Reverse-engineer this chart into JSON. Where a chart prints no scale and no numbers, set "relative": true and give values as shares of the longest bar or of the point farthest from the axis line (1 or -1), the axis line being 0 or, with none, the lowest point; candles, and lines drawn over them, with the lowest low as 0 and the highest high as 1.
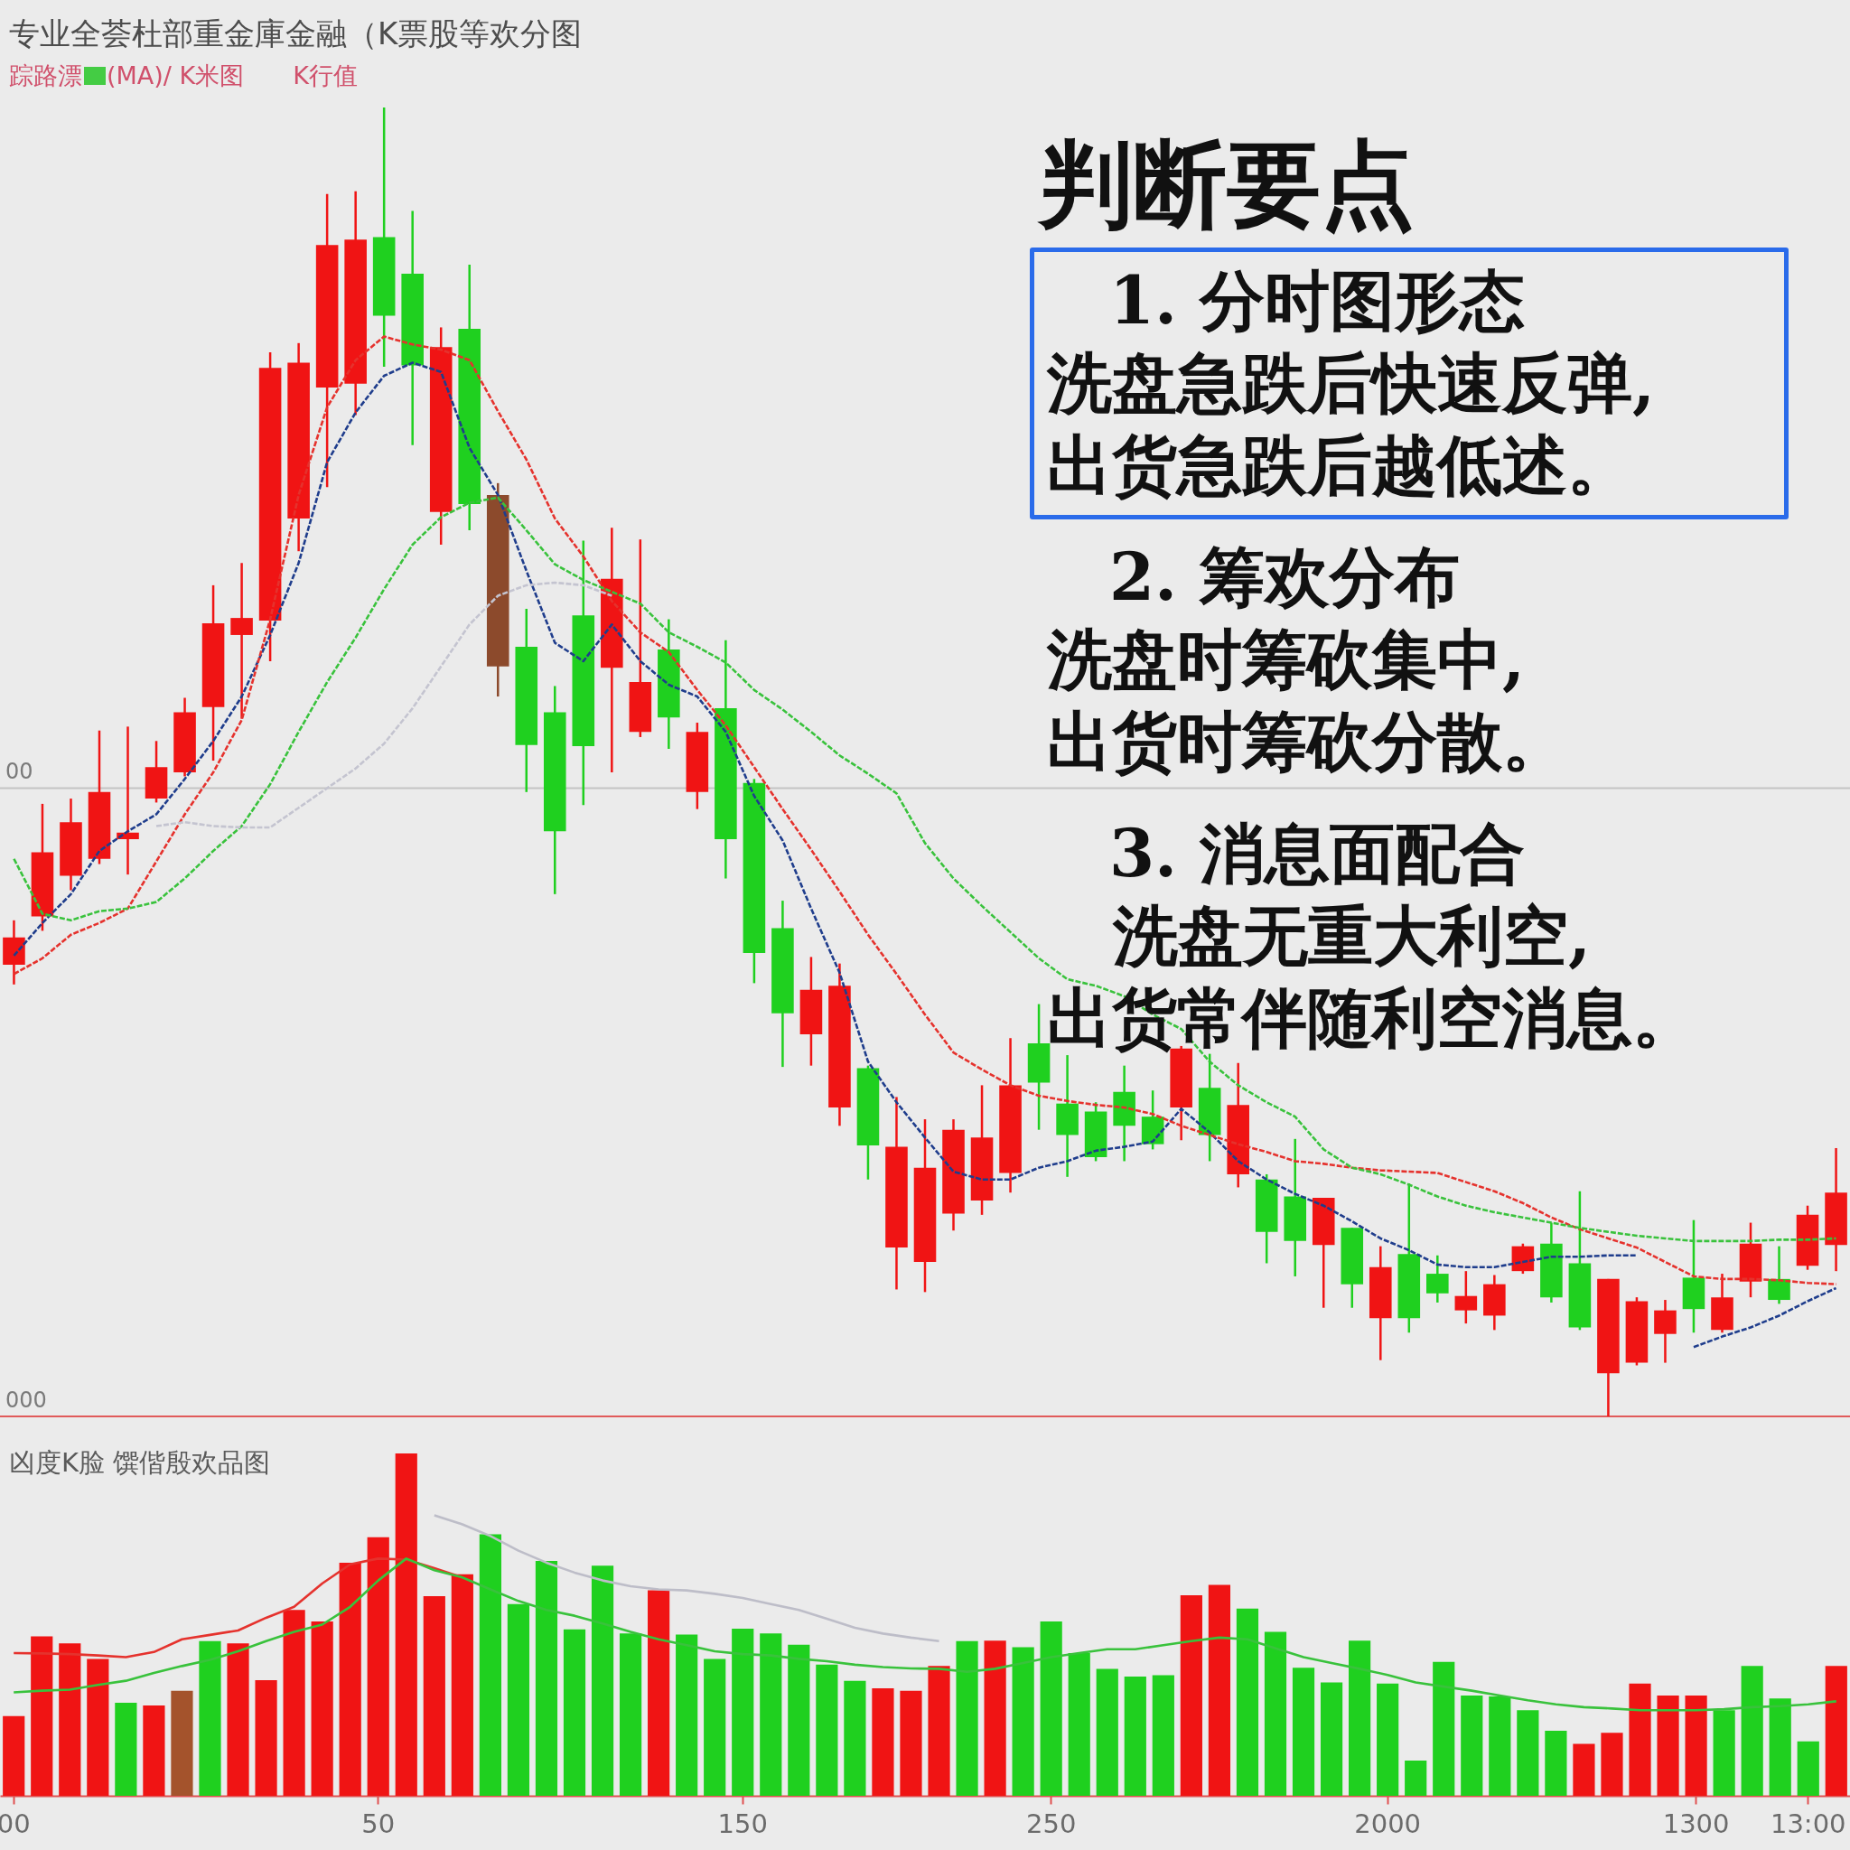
{
  "chart_data": [
    {
      "type": "candlestick",
      "title": "专业全荟杜部重金庫金融（K票股等欢分图",
      "subtitle": "踪路漂　(MA)/ K米图　　K行值",
      "categories": [
        null,
        null,
        null,
        null,
        null,
        null,
        null,
        null,
        null,
        null,
        null,
        null,
        null,
        null,
        null,
        null,
        null,
        null,
        null,
        null,
        null,
        null,
        null,
        null,
        null,
        null,
        null,
        null,
        null,
        null,
        null,
        null,
        null,
        null,
        null,
        null,
        null,
        null,
        null,
        null,
        null,
        null,
        null,
        null,
        null,
        null,
        null,
        null,
        null,
        null,
        null,
        null,
        null,
        null,
        null,
        null,
        null,
        null,
        null,
        null,
        null,
        null,
        null,
        null,
        null
      ],
      "ohlc": [
        [
          0.345,
          0.379,
          0.33,
          0.366
        ],
        [
          0.382,
          0.468,
          0.371,
          0.431
        ],
        [
          0.413,
          0.472,
          0.402,
          0.454
        ],
        [
          0.426,
          0.524,
          0.422,
          0.477
        ],
        [
          0.441,
          0.527,
          0.414,
          0.446
        ],
        [
          0.472,
          0.516,
          0.469,
          0.496
        ],
        [
          0.492,
          0.549,
          0.489,
          0.538
        ],
        [
          0.542,
          0.635,
          0.501,
          0.606
        ],
        [
          0.597,
          0.652,
          0.533,
          0.61
        ],
        [
          0.608,
          0.813,
          0.577,
          0.801
        ],
        [
          0.686,
          0.82,
          0.661,
          0.805
        ],
        [
          0.786,
          0.934,
          0.71,
          0.895
        ],
        [
          0.789,
          0.936,
          0.765,
          0.899
        ],
        [
          0.901,
          1,
          0.802,
          0.841
        ],
        [
          0.873,
          0.921,
          0.742,
          0.803
        ],
        [
          0.691,
          0.832,
          0.666,
          0.817
        ],
        [
          0.831,
          0.88,
          0.677,
          0.697
        ],
        [
          0.704,
          0.713,
          0.55,
          0.573
        ],
        [
          0.588,
          0.617,
          0.477,
          0.513
        ],
        [
          0.538,
          0.558,
          0.399,
          0.447
        ],
        [
          0.612,
          0.669,
          0.467,
          0.512
        ],
        [
          0.572,
          0.679,
          0.492,
          0.64
        ],
        [
          0.523,
          0.67,
          0.519,
          0.561
        ],
        [
          0.586,
          0.609,
          0.51,
          0.534
        ],
        [
          0.477,
          0.53,
          0.464,
          0.523
        ],
        [
          0.541,
          0.593,
          0.411,
          0.441
        ],
        [
          0.484,
          0.487,
          0.331,
          0.354
        ],
        [
          0.373,
          0.394,
          0.267,
          0.308
        ],
        [
          0.292,
          0.351,
          0.268,
          0.326
        ],
        [
          0.236,
          0.346,
          0.222,
          0.329
        ],
        [
          0.266,
          0.268,
          0.181,
          0.207
        ],
        [
          0.129,
          0.244,
          0.097,
          0.206
        ],
        [
          0.118,
          0.227,
          0.095,
          0.19
        ],
        [
          0.155,
          0.227,
          0.142,
          0.219
        ],
        [
          0.165,
          0.253,
          0.154,
          0.213
        ],
        [
          0.186,
          0.289,
          0.171,
          0.253
        ],
        [
          0.285,
          0.315,
          0.219,
          0.255
        ],
        [
          0.239,
          0.276,
          0.183,
          0.215
        ],
        [
          0.233,
          0.24,
          0.195,
          0.198
        ],
        [
          0.248,
          0.268,
          0.195,
          0.222
        ],
        [
          0.229,
          0.249,
          0.204,
          0.208
        ],
        [
          0.236,
          0.283,
          0.211,
          0.281
        ],
        [
          0.251,
          0.277,
          0.195,
          0.215
        ],
        [
          0.185,
          0.27,
          0.175,
          0.238
        ],
        [
          0.181,
          0.185,
          0.117,
          0.141
        ],
        [
          0.168,
          0.212,
          0.107,
          0.134
        ],
        [
          0.131,
          0.167,
          0.083,
          0.167
        ],
        [
          0.144,
          0.144,
          0.083,
          0.101
        ],
        [
          0.075,
          0.13,
          0.043,
          0.114
        ],
        [
          0.124,
          0.178,
          0.064,
          0.075
        ],
        [
          0.109,
          0.123,
          0.087,
          0.094
        ],
        [
          0.081,
          0.111,
          0.071,
          0.092
        ],
        [
          0.077,
          0.108,
          0.066,
          0.101
        ],
        [
          0.111,
          0.132,
          0.109,
          0.13
        ],
        [
          0.132,
          0.148,
          0.087,
          0.091
        ],
        [
          0.117,
          0.172,
          0.066,
          0.068
        ],
        [
          0.033,
          0.105,
          0,
          0.105
        ],
        [
          0.041,
          0.091,
          0.039,
          0.088
        ],
        [
          0.063,
          0.089,
          0.041,
          0.081
        ],
        [
          0.106,
          0.15,
          0.064,
          0.082
        ],
        [
          0.066,
          0.109,
          0.064,
          0.091
        ],
        [
          0.103,
          0.148,
          0.091,
          0.132
        ],
        [
          0.105,
          0.13,
          0.086,
          0.089
        ],
        [
          0.115,
          0.161,
          0.112,
          0.154
        ],
        [
          0.131,
          0.205,
          0.111,
          0.171
        ]
      ],
      "colors": [
        "#f01414",
        "#f01414",
        "#f01414",
        "#f01414",
        "#f01414",
        "#f01414",
        "#f01414",
        "#f01414",
        "#f01414",
        "#f01414",
        "#f01414",
        "#f01414",
        "#f01414",
        "#1fd01f",
        "#1fd01f",
        "#f01414",
        "#1fd01f",
        "#8c4a2c",
        "#1fd01f",
        "#1fd01f",
        "#1fd01f",
        "#f01414",
        "#f01414",
        "#1fd01f",
        "#f01414",
        "#1fd01f",
        "#1fd01f",
        "#1fd01f",
        "#f01414",
        "#f01414",
        "#1fd01f",
        "#f01414",
        "#f01414",
        "#f01414",
        "#f01414",
        "#f01414",
        "#1fd01f",
        "#1fd01f",
        "#1fd01f",
        "#1fd01f",
        "#1fd01f",
        "#f01414",
        "#1fd01f",
        "#f01414",
        "#1fd01f",
        "#1fd01f",
        "#f01414",
        "#1fd01f",
        "#f01414",
        "#1fd01f",
        "#1fd01f",
        "#f01414",
        "#f01414",
        "#f01414",
        "#1fd01f",
        "#1fd01f",
        "#f01414",
        "#f01414",
        "#f01414",
        "#1fd01f",
        "#f01414",
        "#f01414",
        "#1fd01f",
        "#f01414",
        "#f01414"
      ],
      "relative": true,
      "line_style": "dotted",
      "series": [
        {
          "type": "line",
          "color": "#1f3d8c",
          "values": [
            0.352,
            0.377,
            0.399,
            0.432,
            0.447,
            0.46,
            0.487,
            0.516,
            0.55,
            0.597,
            0.652,
            0.729,
            0.767,
            0.795,
            0.805,
            0.798,
            0.74,
            0.704,
            0.646,
            0.591,
            0.577,
            0.605,
            0.577,
            0.559,
            0.55,
            0.523,
            0.474,
            0.44,
            0.388,
            0.339,
            0.271,
            0.24,
            0.213,
            0.187,
            0.181,
            0.181,
            0.19,
            0.195,
            0.203,
            0.206,
            0.21,
            0.235,
            0.217,
            0.195,
            0.181,
            0.17,
            0.161,
            0.149,
            0.136,
            0.127,
            0.116,
            0.114,
            0.114,
            0.118,
            0.122,
            0.122,
            0.123,
            0.123,
            null,
            0.053,
            0.061,
            0.068,
            0.077,
            0.088,
            0.098
          ]
        },
        {
          "type": "line",
          "color": "#e5322d",
          "values": [
            0.338,
            0.35,
            0.368,
            0.377,
            0.388,
            0.424,
            0.46,
            0.492,
            0.532,
            0.609,
            0.704,
            0.771,
            0.807,
            0.825,
            0.819,
            0.815,
            0.807,
            0.768,
            0.731,
            0.686,
            0.657,
            0.623,
            0.599,
            0.584,
            0.555,
            0.528,
            0.496,
            0.464,
            0.433,
            0.401,
            0.368,
            0.338,
            0.307,
            0.278,
            0.265,
            0.253,
            0.245,
            0.241,
            0.238,
            0.236,
            0.231,
            0.222,
            0.215,
            0.208,
            0.202,
            0.195,
            0.193,
            0.19,
            0.188,
            0.187,
            0.186,
            0.179,
            0.172,
            0.163,
            0.152,
            0.143,
            0.136,
            0.129,
            0.118,
            0.107,
            0.105,
            0.105,
            0.104,
            0.102,
            0.101
          ]
        },
        {
          "type": "line",
          "color": "#39c23c",
          "values": [
            0.426,
            0.384,
            0.379,
            0.386,
            0.388,
            0.393,
            0.411,
            0.432,
            0.451,
            0.483,
            0.523,
            0.561,
            0.595,
            0.632,
            0.666,
            0.687,
            0.698,
            0.702,
            0.677,
            0.651,
            0.639,
            0.63,
            0.621,
            0.599,
            0.588,
            0.576,
            0.555,
            0.54,
            0.523,
            0.505,
            0.491,
            0.476,
            0.438,
            0.411,
            0.39,
            0.37,
            0.35,
            0.334,
            0.329,
            0.321,
            0.307,
            0.296,
            0.271,
            0.253,
            0.24,
            0.229,
            0.204,
            0.19,
            0.185,
            0.177,
            0.168,
            0.161,
            0.156,
            0.152,
            0.148,
            0.144,
            0.141,
            0.138,
            0.136,
            0.134,
            0.134,
            0.134,
            0.135,
            0.135,
            0.136
          ]
        },
        {
          "type": "line",
          "color": "#c4c4d0",
          "values": [
            null,
            null,
            null,
            null,
            null,
            0.451,
            0.454,
            0.451,
            0.45,
            0.45,
            0.465,
            0.48,
            0.495,
            0.514,
            0.541,
            0.573,
            0.605,
            0.627,
            0.635,
            0.637,
            0.635,
            0.627,
            null,
            null,
            null,
            null,
            null,
            null,
            null,
            null,
            null,
            null,
            null,
            null,
            null,
            null,
            null,
            null,
            null,
            null,
            null,
            null,
            null,
            null,
            null,
            null,
            null,
            null,
            null,
            null,
            null,
            null,
            null,
            null,
            null,
            null,
            null,
            null,
            null,
            null,
            null,
            null,
            null,
            null,
            null
          ]
        }
      ],
      "ref_lines": [
        {
          "axis": "y",
          "value": 0.48,
          "label": "00",
          "color": "#c4c4c4"
        },
        {
          "axis": "y",
          "value": 0,
          "label": "000",
          "color": "#e05a5a"
        }
      ],
      "annotations": [
        "判断要点",
        "1. 分时图形态",
        "洗盘急跌后快速反弹,",
        "出货急跌后越低述。",
        "2. 筹欢分布",
        "洗盘时筹砍集中,",
        "出货时筹砍分散。",
        "3. 消息面配合",
        "洗盘无重大利空,",
        "出货常伴随利空消息。"
      ]
    },
    {
      "type": "bar",
      "title": "凶度K脸 馔偕殷欢品图",
      "categories": [
        "00",
        null,
        null,
        null,
        null,
        null,
        null,
        null,
        null,
        null,
        null,
        null,
        null,
        "50",
        null,
        null,
        null,
        null,
        null,
        null,
        null,
        null,
        null,
        null,
        null,
        null,
        "150",
        null,
        null,
        null,
        null,
        null,
        null,
        null,
        null,
        null,
        null,
        "250",
        null,
        null,
        null,
        null,
        null,
        null,
        null,
        null,
        null,
        null,
        null,
        "2000",
        null,
        null,
        null,
        null,
        null,
        null,
        null,
        null,
        null,
        null,
        "1300",
        null,
        null,
        null,
        "13:00",
        null
      ],
      "values": [
        0.233,
        0.466,
        0.445,
        0.4,
        0.272,
        0.264,
        0.307,
        0.452,
        0.445,
        0.338,
        0.543,
        0.509,
        0.681,
        0.755,
        1,
        0.583,
        0.647,
        0.764,
        0.56,
        0.686,
        0.486,
        0.672,
        0.474,
        0.6,
        0.471,
        0.4,
        0.488,
        0.474,
        0.441,
        0.383,
        0.336,
        0.314,
        0.307,
        0.379,
        0.452,
        0.453,
        0.434,
        0.509,
        0.417,
        0.371,
        0.348,
        0.352,
        0.586,
        0.616,
        0.547,
        0.479,
        0.374,
        0.331,
        0.453,
        0.328,
        0.103,
        0.391,
        0.293,
        0.29,
        0.25,
        0.19,
        0.152,
        0.184,
        0.328,
        0.293,
        0.293,
        0.25,
        0.379,
        0.284,
        0.159,
        0.379
      ],
      "colors": [
        "#f01414",
        "#f01414",
        "#f01414",
        "#f01414",
        "#1fd01f",
        "#f01414",
        "#a4532c",
        "#1fd01f",
        "#f01414",
        "#f01414",
        "#f01414",
        "#f01414",
        "#f01414",
        "#f01414",
        "#f01414",
        "#f01414",
        "#f01414",
        "#1fd01f",
        "#1fd01f",
        "#1fd01f",
        "#1fd01f",
        "#1fd01f",
        "#1fd01f",
        "#f01414",
        "#1fd01f",
        "#1fd01f",
        "#1fd01f",
        "#1fd01f",
        "#1fd01f",
        "#1fd01f",
        "#1fd01f",
        "#f01414",
        "#f01414",
        "#f01414",
        "#1fd01f",
        "#f01414",
        "#1fd01f",
        "#1fd01f",
        "#1fd01f",
        "#1fd01f",
        "#1fd01f",
        "#1fd01f",
        "#f01414",
        "#f01414",
        "#1fd01f",
        "#1fd01f",
        "#1fd01f",
        "#1fd01f",
        "#1fd01f",
        "#1fd01f",
        "#1fd01f",
        "#1fd01f",
        "#1fd01f",
        "#1fd01f",
        "#1fd01f",
        "#1fd01f",
        "#f01414",
        "#f01414",
        "#f01414",
        "#f01414",
        "#f01414",
        "#1fd01f",
        "#1fd01f",
        "#1fd01f",
        "#1fd01f",
        "#f01414"
      ],
      "relative": true,
      "series": [
        {
          "type": "line",
          "color": "#e5322d",
          "values": [
            0.417,
            0.416,
            0.414,
            0.41,
            0.405,
            0.42,
            0.457,
            0.47,
            0.483,
            0.52,
            0.552,
            0.62,
            0.676,
            0.693,
            0.69,
            0.665,
            0.638,
            null,
            null,
            null,
            null,
            null,
            null,
            null,
            null,
            null,
            null,
            null,
            null,
            null,
            null,
            null,
            null,
            null,
            null,
            null,
            null,
            null,
            null,
            null,
            null,
            null,
            null,
            null,
            null,
            null,
            null,
            null,
            null,
            null,
            null,
            null,
            null,
            null,
            null,
            null,
            null,
            null,
            null,
            null,
            null,
            null,
            null,
            null,
            null,
            null
          ]
        },
        {
          "type": "line",
          "color": "#39c23c",
          "values": [
            0.302,
            0.307,
            0.31,
            0.324,
            0.336,
            0.359,
            0.379,
            0.397,
            0.422,
            0.452,
            0.479,
            0.5,
            0.552,
            0.629,
            0.693,
            0.659,
            0.638,
            0.603,
            0.569,
            0.543,
            0.526,
            0.503,
            0.479,
            0.457,
            0.44,
            0.422,
            0.414,
            0.41,
            0.4,
            0.393,
            0.383,
            0.376,
            0.372,
            0.371,
            0.362,
            0.371,
            0.388,
            0.405,
            0.417,
            0.428,
            0.428,
            0.44,
            0.452,
            0.462,
            0.457,
            0.431,
            0.405,
            0.388,
            0.371,
            0.353,
            0.331,
            0.319,
            0.307,
            0.293,
            0.279,
            0.267,
            0.259,
            0.255,
            0.25,
            0.25,
            0.25,
            0.253,
            0.259,
            0.262,
            0.267,
            0.276
          ]
        },
        {
          "type": "line",
          "color": "#bdbdc8",
          "values": [
            null,
            null,
            null,
            null,
            null,
            null,
            null,
            null,
            null,
            null,
            null,
            null,
            null,
            null,
            null,
            0.819,
            0.793,
            0.759,
            0.716,
            0.681,
            0.652,
            0.629,
            0.612,
            0.603,
            0.6,
            0.59,
            0.578,
            0.56,
            0.543,
            0.517,
            0.491,
            0.474,
            0.462,
            0.452,
            null,
            null,
            null,
            null,
            null,
            null,
            null,
            null,
            null,
            null,
            null,
            null,
            null,
            null,
            null,
            null,
            null,
            null,
            null,
            null,
            null,
            null,
            null,
            null,
            null,
            null,
            null,
            null,
            null,
            null,
            null,
            null
          ]
        }
      ]
    }
  ]
}
